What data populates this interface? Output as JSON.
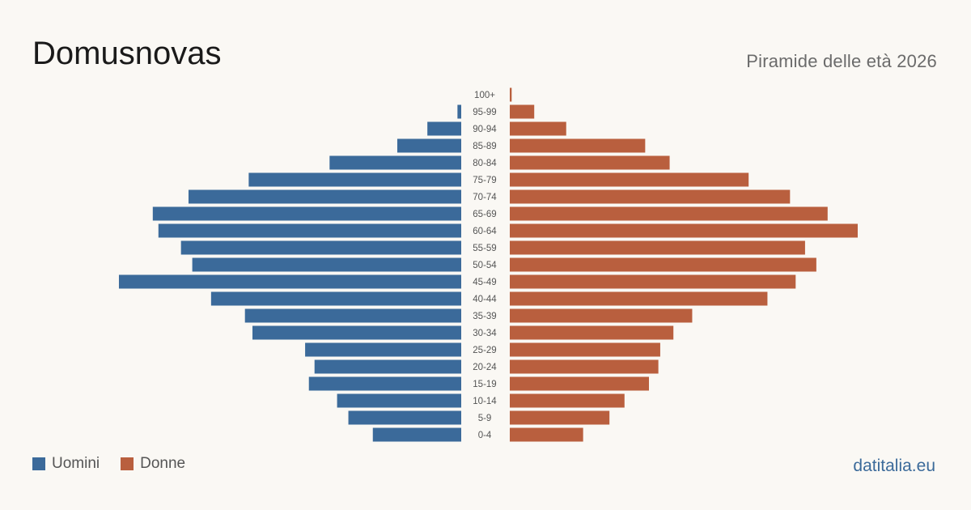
{
  "title": "Domusnovas",
  "subtitle": "Piramide delle età 2026",
  "brand": "datitalia.eu",
  "colors": {
    "men": "#3b6a9a",
    "women": "#b95f3e",
    "background": "#faf8f4",
    "label": "#555555",
    "brand": "#3b6a9a"
  },
  "legend": {
    "men_label": "Uomini",
    "women_label": "Donne"
  },
  "chart_data": {
    "type": "bar",
    "orientation": "horizontal",
    "variant": "population-pyramid",
    "title": "Domusnovas",
    "subtitle": "Piramide delle età 2026",
    "categories": [
      "100+",
      "95-99",
      "90-94",
      "85-89",
      "80-84",
      "75-79",
      "70-74",
      "65-69",
      "60-64",
      "55-59",
      "50-54",
      "45-49",
      "40-44",
      "35-39",
      "30-34",
      "25-29",
      "20-24",
      "15-19",
      "10-14",
      "5-9",
      "0-4"
    ],
    "series": [
      {
        "name": "Uomini",
        "side": "left",
        "color": "#3b6a9a",
        "values": [
          0,
          2,
          18,
          34,
          70,
          113,
          145,
          164,
          161,
          149,
          143,
          182,
          133,
          115,
          111,
          83,
          78,
          81,
          66,
          60,
          47
        ]
      },
      {
        "name": "Donne",
        "side": "right",
        "color": "#b95f3e",
        "values": [
          1,
          13,
          30,
          72,
          85,
          127,
          149,
          169,
          185,
          157,
          163,
          152,
          137,
          97,
          87,
          80,
          79,
          74,
          61,
          53,
          39
        ]
      }
    ],
    "legend_position": "bottom-left",
    "grid": false,
    "axis_labels_visible": false
  }
}
